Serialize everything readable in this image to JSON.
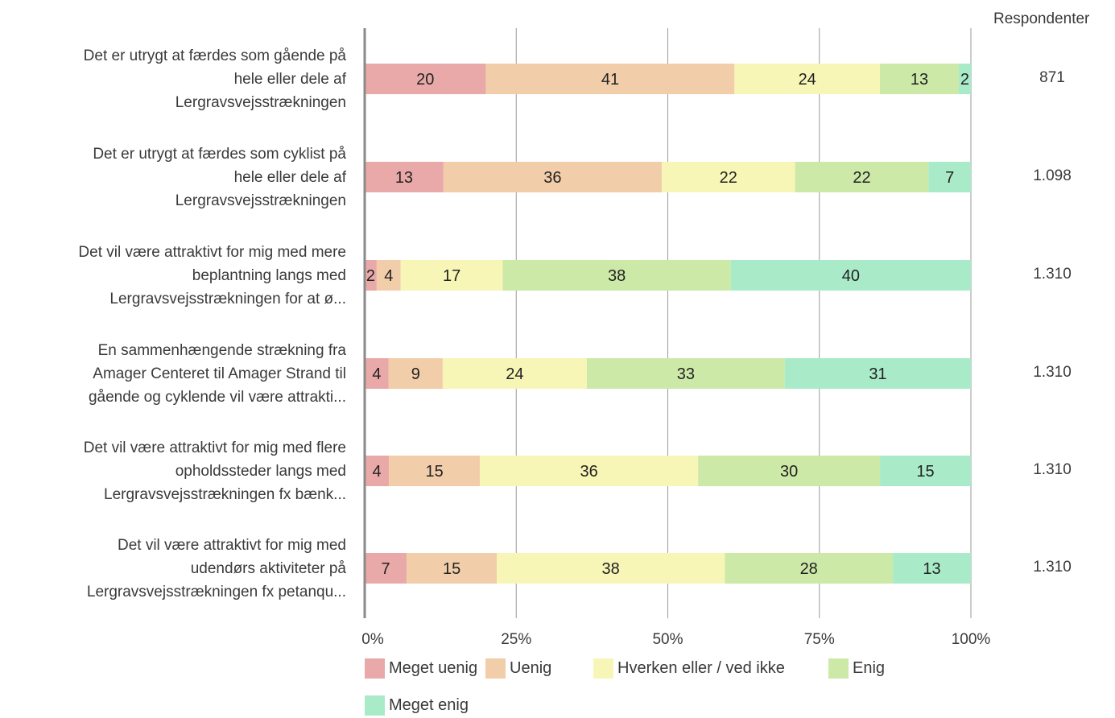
{
  "chart_data": {
    "type": "bar",
    "orientation": "horizontal-stacked-percent",
    "categories": [
      "Det er utrygt at færdes som gående på hele eller dele af Lergravsvejsstrækningen",
      "Det er utrygt at færdes som cyklist på hele eller dele af Lergravsvejsstrækningen",
      "Det vil være attraktivt for mig med mere beplantning langs med Lergravsvejsstrækningen for at ø...",
      "En sammenhængende strækning fra Amager Centeret til Amager Strand til gående og cyklende vil være attrakti...",
      "Det vil være attraktivt for mig med flere opholdssteder langs med Lergravsvejsstrækningen fx bænk...",
      "Det vil være attraktivt for mig med udendørs aktiviteter på Lergravsvejsstrækningen fx petanqu..."
    ],
    "category_lines": [
      [
        "Det er utrygt at færdes som gående på",
        "hele eller dele af",
        "Lergravsvejsstrækningen"
      ],
      [
        "Det er utrygt at færdes som cyklist på",
        "hele eller dele af",
        "Lergravsvejsstrækningen"
      ],
      [
        "Det vil være attraktivt for mig med mere",
        "beplantning langs med",
        "Lergravsvejsstrækningen for at ø..."
      ],
      [
        "En sammenhængende strækning fra",
        "Amager Centeret til Amager Strand til",
        "gående og cyklende vil være attrakti..."
      ],
      [
        "Det vil være attraktivt for mig med flere",
        "opholdssteder langs med",
        "Lergravsvejsstrækningen fx bænk..."
      ],
      [
        "Det vil være attraktivt for mig med",
        "udendørs aktiviteter på",
        "Lergravsvejsstrækningen fx petanqu..."
      ]
    ],
    "series": [
      {
        "name": "Meget uenig",
        "color": "#eaa9a9",
        "values": [
          20,
          13,
          2,
          4,
          4,
          7
        ]
      },
      {
        "name": "Uenig",
        "color": "#f2cdaa",
        "values": [
          41,
          36,
          4,
          9,
          15,
          15
        ]
      },
      {
        "name": "Hverken eller / ved ikke",
        "color": "#f8f6b6",
        "values": [
          24,
          22,
          17,
          24,
          36,
          38
        ]
      },
      {
        "name": "Enig",
        "color": "#cce9a8",
        "values": [
          13,
          22,
          38,
          33,
          30,
          28
        ]
      },
      {
        "name": "Meget enig",
        "color": "#a9ebc9",
        "values": [
          2,
          7,
          40,
          31,
          15,
          13
        ]
      }
    ],
    "respondents_header": "Respondenter",
    "respondents": [
      "871",
      "1.098",
      "1.310",
      "1.310",
      "1.310",
      "1.310"
    ],
    "x_ticks": [
      "0%",
      "25%",
      "50%",
      "75%",
      "100%"
    ],
    "xlim": [
      0,
      100
    ],
    "grid": true,
    "legend_position": "bottom"
  }
}
